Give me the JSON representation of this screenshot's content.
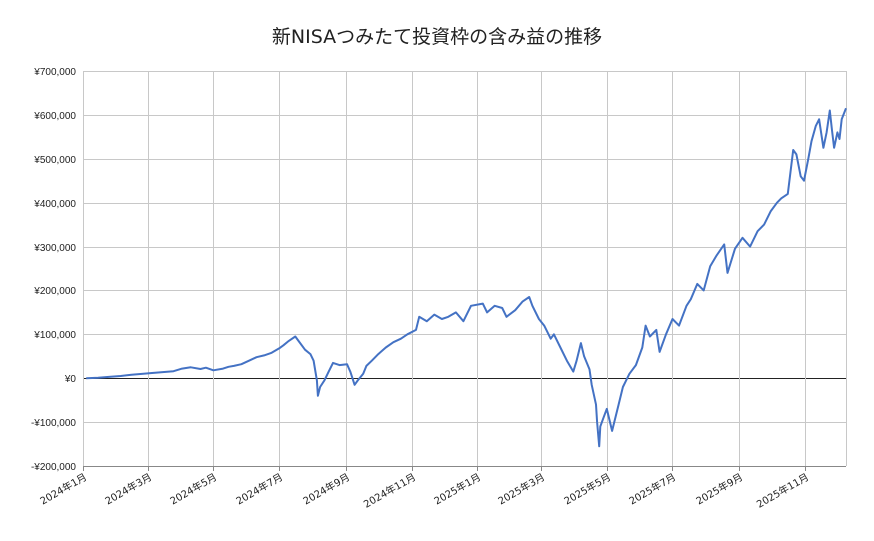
{
  "chart_data": {
    "type": "line",
    "title": "新NISAつみたて投資枠の含み益の推移",
    "xlabel": "",
    "ylabel": "",
    "x_range": [
      "2024-01-01",
      "2025-12-09"
    ],
    "ylim": [
      -200000,
      700000
    ],
    "y_ticks": [
      700000,
      600000,
      500000,
      400000,
      300000,
      200000,
      100000,
      0,
      -100000,
      -200000
    ],
    "y_tick_labels": [
      "¥700,000",
      "¥600,000",
      "¥500,000",
      "¥400,000",
      "¥300,000",
      "¥200,000",
      "¥100,000",
      "¥0",
      "-¥100,000",
      "-¥200,000"
    ],
    "x_ticks": [
      "2024-01-01",
      "2024-03-01",
      "2024-05-01",
      "2024-07-01",
      "2024-09-01",
      "2024-11-01",
      "2025-01-01",
      "2025-03-01",
      "2025-05-01",
      "2025-07-01",
      "2025-09-01",
      "2025-11-01"
    ],
    "x_tick_labels": [
      "2024年1月",
      "2024年3月",
      "2024年5月",
      "2024年7月",
      "2024年9月",
      "2024年11月",
      "2025年1月",
      "2025年3月",
      "2025年5月",
      "2025年7月",
      "2025年9月",
      "2025年11月"
    ],
    "grid": true,
    "line_color": "#4472c4",
    "series": [
      {
        "values": [
          [
            "2024-01-04",
            0
          ],
          [
            "2024-01-15",
            1000
          ],
          [
            "2024-01-25",
            3000
          ],
          [
            "2024-02-05",
            5000
          ],
          [
            "2024-02-15",
            8000
          ],
          [
            "2024-02-26",
            10000
          ],
          [
            "2024-03-05",
            12000
          ],
          [
            "2024-03-15",
            14000
          ],
          [
            "2024-03-25",
            16000
          ],
          [
            "2024-04-02",
            22000
          ],
          [
            "2024-04-10",
            25000
          ],
          [
            "2024-04-19",
            21000
          ],
          [
            "2024-04-24",
            24000
          ],
          [
            "2024-05-01",
            18000
          ],
          [
            "2024-05-10",
            22000
          ],
          [
            "2024-05-15",
            26000
          ],
          [
            "2024-05-20",
            28000
          ],
          [
            "2024-05-27",
            32000
          ],
          [
            "2024-06-03",
            40000
          ],
          [
            "2024-06-10",
            48000
          ],
          [
            "2024-06-17",
            52000
          ],
          [
            "2024-06-24",
            58000
          ],
          [
            "2024-07-01",
            68000
          ],
          [
            "2024-07-05",
            75000
          ],
          [
            "2024-07-10",
            85000
          ],
          [
            "2024-07-16",
            95000
          ],
          [
            "2024-07-19",
            85000
          ],
          [
            "2024-07-25",
            65000
          ],
          [
            "2024-07-30",
            55000
          ],
          [
            "2024-08-02",
            40000
          ],
          [
            "2024-08-05",
            -5000
          ],
          [
            "2024-08-06",
            -40000
          ],
          [
            "2024-08-08",
            -20000
          ],
          [
            "2024-08-12",
            -5000
          ],
          [
            "2024-08-16",
            15000
          ],
          [
            "2024-08-20",
            35000
          ],
          [
            "2024-08-26",
            30000
          ],
          [
            "2024-09-02",
            32000
          ],
          [
            "2024-09-05",
            15000
          ],
          [
            "2024-09-09",
            -15000
          ],
          [
            "2024-09-12",
            -5000
          ],
          [
            "2024-09-17",
            10000
          ],
          [
            "2024-09-20",
            28000
          ],
          [
            "2024-09-25",
            40000
          ],
          [
            "2024-10-01",
            55000
          ],
          [
            "2024-10-08",
            70000
          ],
          [
            "2024-10-15",
            82000
          ],
          [
            "2024-10-22",
            90000
          ],
          [
            "2024-10-28",
            100000
          ],
          [
            "2024-11-05",
            110000
          ],
          [
            "2024-11-08",
            140000
          ],
          [
            "2024-11-15",
            130000
          ],
          [
            "2024-11-22",
            145000
          ],
          [
            "2024-11-29",
            135000
          ],
          [
            "2024-12-05",
            140000
          ],
          [
            "2024-12-12",
            150000
          ],
          [
            "2024-12-19",
            130000
          ],
          [
            "2024-12-26",
            165000
          ],
          [
            "2025-01-06",
            170000
          ],
          [
            "2025-01-10",
            150000
          ],
          [
            "2025-01-17",
            165000
          ],
          [
            "2025-01-24",
            160000
          ],
          [
            "2025-01-28",
            140000
          ],
          [
            "2025-02-05",
            155000
          ],
          [
            "2025-02-12",
            175000
          ],
          [
            "2025-02-18",
            185000
          ],
          [
            "2025-02-21",
            165000
          ],
          [
            "2025-02-27",
            135000
          ],
          [
            "2025-03-04",
            120000
          ],
          [
            "2025-03-10",
            90000
          ],
          [
            "2025-03-13",
            100000
          ],
          [
            "2025-03-19",
            70000
          ],
          [
            "2025-03-25",
            40000
          ],
          [
            "2025-03-31",
            15000
          ],
          [
            "2025-04-03",
            40000
          ],
          [
            "2025-04-07",
            80000
          ],
          [
            "2025-04-10",
            50000
          ],
          [
            "2025-04-15",
            20000
          ],
          [
            "2025-04-17",
            -15000
          ],
          [
            "2025-04-21",
            -60000
          ],
          [
            "2025-04-22",
            -100000
          ],
          [
            "2025-04-24",
            -155000
          ],
          [
            "2025-04-25",
            -110000
          ],
          [
            "2025-04-28",
            -90000
          ],
          [
            "2025-05-01",
            -70000
          ],
          [
            "2025-05-06",
            -120000
          ],
          [
            "2025-05-12",
            -60000
          ],
          [
            "2025-05-16",
            -20000
          ],
          [
            "2025-05-22",
            10000
          ],
          [
            "2025-05-28",
            30000
          ],
          [
            "2025-06-03",
            70000
          ],
          [
            "2025-06-06",
            120000
          ],
          [
            "2025-06-10",
            95000
          ],
          [
            "2025-06-16",
            110000
          ],
          [
            "2025-06-19",
            60000
          ],
          [
            "2025-06-25",
            100000
          ],
          [
            "2025-07-01",
            135000
          ],
          [
            "2025-07-07",
            120000
          ],
          [
            "2025-07-14",
            165000
          ],
          [
            "2025-07-18",
            180000
          ],
          [
            "2025-07-24",
            215000
          ],
          [
            "2025-07-30",
            200000
          ],
          [
            "2025-08-05",
            255000
          ],
          [
            "2025-08-11",
            280000
          ],
          [
            "2025-08-18",
            305000
          ],
          [
            "2025-08-21",
            240000
          ],
          [
            "2025-08-28",
            295000
          ],
          [
            "2025-09-04",
            320000
          ],
          [
            "2025-09-11",
            300000
          ],
          [
            "2025-09-18",
            335000
          ],
          [
            "2025-09-24",
            350000
          ],
          [
            "2025-09-30",
            380000
          ],
          [
            "2025-10-06",
            400000
          ],
          [
            "2025-10-10",
            410000
          ],
          [
            "2025-10-16",
            420000
          ],
          [
            "2025-10-21",
            520000
          ],
          [
            "2025-10-24",
            510000
          ],
          [
            "2025-10-28",
            460000
          ],
          [
            "2025-10-31",
            450000
          ],
          [
            "2025-11-04",
            500000
          ],
          [
            "2025-11-07",
            540000
          ],
          [
            "2025-11-11",
            575000
          ],
          [
            "2025-11-14",
            590000
          ],
          [
            "2025-11-18",
            525000
          ],
          [
            "2025-11-21",
            560000
          ],
          [
            "2025-11-24",
            610000
          ],
          [
            "2025-11-26",
            565000
          ],
          [
            "2025-11-28",
            525000
          ],
          [
            "2025-12-01",
            560000
          ],
          [
            "2025-12-03",
            545000
          ],
          [
            "2025-12-05",
            590000
          ],
          [
            "2025-12-09",
            615000
          ]
        ]
      }
    ]
  }
}
